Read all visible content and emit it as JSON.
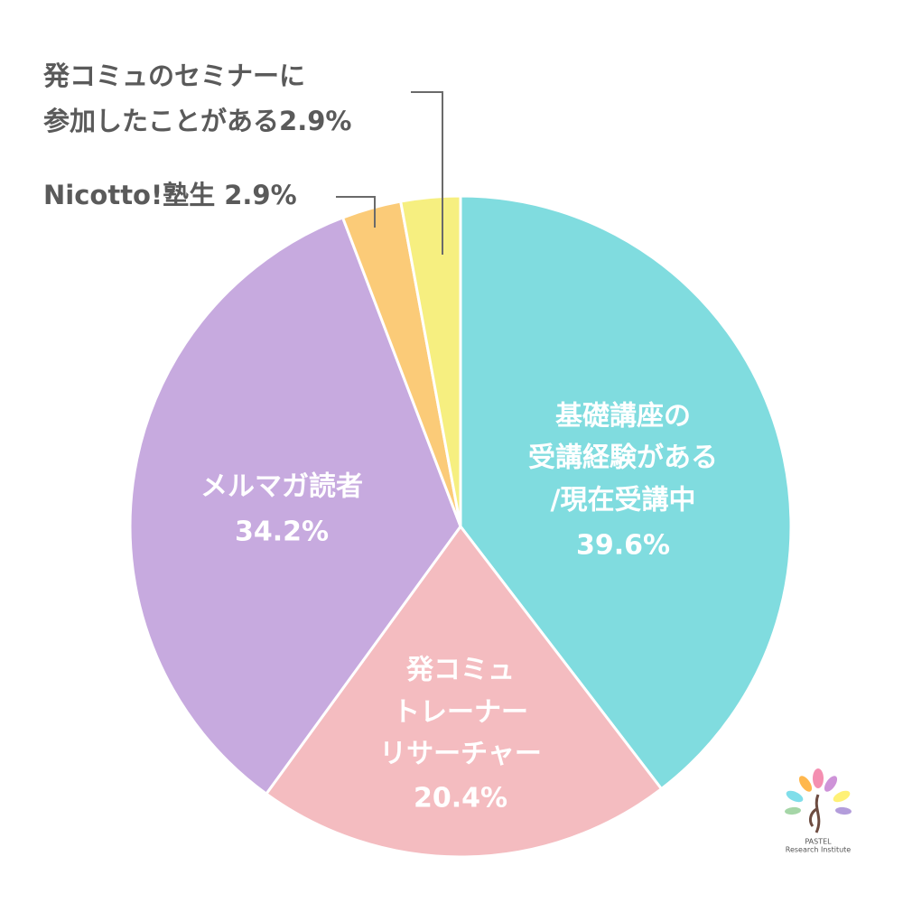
{
  "chart_data": {
    "type": "pie",
    "categories": [
      [
        "基礎講座の",
        "受講経験がある",
        "/現在受講中"
      ],
      [
        "発コミュ",
        "トレーナー",
        "リサーチャー"
      ],
      [
        "メルマガ読者"
      ],
      [
        "Nicotto!塾生"
      ],
      [
        "発コミュのセミナーに",
        "参加したことがある"
      ]
    ],
    "values": [
      39.6,
      20.4,
      34.2,
      2.9,
      2.9
    ],
    "value_labels": [
      "39.6%",
      "20.4%",
      "34.2%",
      "2.9%",
      "2.9%"
    ],
    "colors": [
      "#80dcdf",
      "#f4bcc0",
      "#c7aadf",
      "#fbcb78",
      "#f6ef80"
    ],
    "logo": [
      "PASTEL",
      "Research Institute"
    ]
  }
}
